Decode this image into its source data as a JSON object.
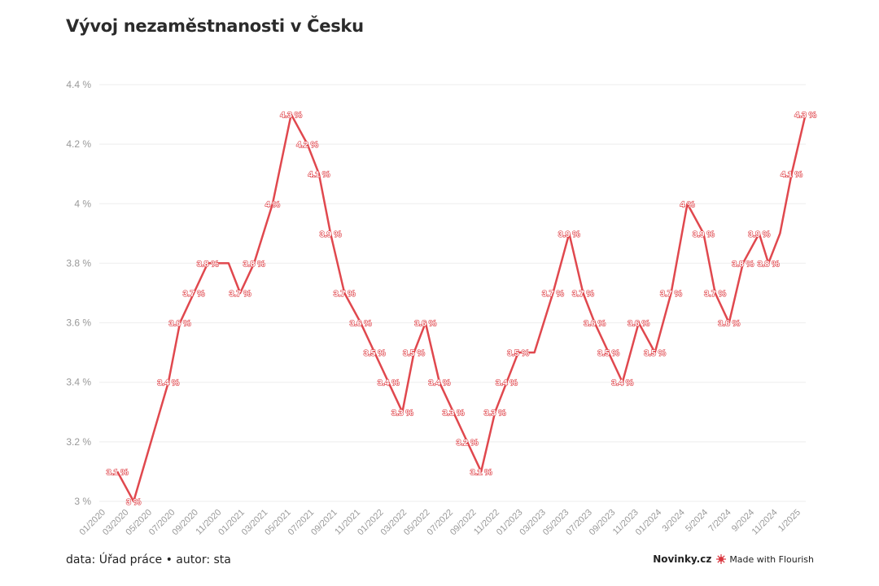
{
  "title": "Vývoj nezaměstnanosti v Česku",
  "footer": {
    "source": "data: Úřad práce • autor: sta",
    "brand": "Novinky.cz",
    "made_with": "Made with Flourish"
  },
  "colors": {
    "line": "#e0484e",
    "grid": "#eeeeee",
    "tick": "#999999"
  },
  "chart_data": {
    "type": "line",
    "title": "Vývoj nezaměstnanosti v Česku",
    "xlabel": "",
    "ylabel": "",
    "ylim": [
      3,
      4.4
    ],
    "y_ticks": [
      "3 %",
      "3.2 %",
      "3.4 %",
      "3.6 %",
      "3.8 %",
      "4 %",
      "4.2 %",
      "4.4 %"
    ],
    "y_tick_values": [
      3,
      3.2,
      3.4,
      3.6,
      3.8,
      4,
      4.2,
      4.4
    ],
    "x_tick_labels": [
      "01/2020",
      "03/2020",
      "05/2020",
      "07/2020",
      "09/2020",
      "11/2020",
      "01/2021",
      "03/2021",
      "05/2021",
      "07/2021",
      "09/2021",
      "11/2021",
      "01/2022",
      "03/2022",
      "05/2022",
      "07/2022",
      "09/2022",
      "11/2022",
      "01/2023",
      "03/2023",
      "05/2023",
      "07/2023",
      "09/2023",
      "11/2023",
      "01/2024",
      "3/2024",
      "5/2024",
      "7/2024",
      "9/2024",
      "11/2024",
      "1/2025"
    ],
    "series": [
      {
        "values": [
          3.1,
          3.0,
          3.4,
          3.6,
          3.7,
          3.8,
          3.8,
          3.7,
          3.8,
          4.0,
          4.3,
          4.2,
          4.1,
          3.9,
          3.7,
          3.6,
          3.5,
          3.4,
          3.3,
          3.5,
          3.6,
          3.4,
          3.3,
          3.2,
          3.1,
          3.3,
          3.4,
          3.5,
          3.5,
          3.7,
          3.9,
          3.7,
          3.6,
          3.5,
          3.4,
          3.6,
          3.5,
          3.7,
          4.0,
          3.9,
          3.7,
          3.6,
          3.8,
          3.9,
          3.8,
          3.9,
          4.1,
          4.3
        ],
        "labels": [
          "3.1 %",
          "3 %",
          "3.4 %",
          "3.6 %",
          "3.7 %",
          "3.8 %",
          "",
          "3.7 %",
          "3.8 %",
          "4 %",
          "4.3 %",
          "4.2 %",
          "4.1 %",
          "3.9 %",
          "3.7 %",
          "3.6 %",
          "3.5 %",
          "3.4 %",
          "3.3 %",
          "3.5 %",
          "3.6 %",
          "3.4 %",
          "3.3 %",
          "3.2 %",
          "3.1 %",
          "3.3 %",
          "3.4 %",
          "3.5 %",
          "",
          "3.7 %",
          "3.9 %",
          "3.7 %",
          "3.6 %",
          "3.5 %",
          "3.4 %",
          "3.6 %",
          "3.5 %",
          "3.7 %",
          "4 %",
          "3.9 %",
          "3.7 %",
          "3.6 %",
          "3.8 %",
          "3.9 %",
          "3.8 %",
          "",
          "4.1 %",
          "4.3 %"
        ],
        "x_positions": [
          0.5,
          1.2,
          2.7,
          3.2,
          3.8,
          4.4,
          5.3,
          5.8,
          6.4,
          7.2,
          8.0,
          8.7,
          9.2,
          9.7,
          10.3,
          11.0,
          11.6,
          12.2,
          12.8,
          13.3,
          13.8,
          14.4,
          15.0,
          15.6,
          16.2,
          16.8,
          17.3,
          17.8,
          18.5,
          19.3,
          20.0,
          20.6,
          21.1,
          21.7,
          22.3,
          23.0,
          23.7,
          24.4,
          25.1,
          25.8,
          26.3,
          26.9,
          27.5,
          28.2,
          28.6,
          29.1,
          29.6,
          30.2
        ]
      }
    ],
    "grid": true,
    "legend": "none"
  }
}
